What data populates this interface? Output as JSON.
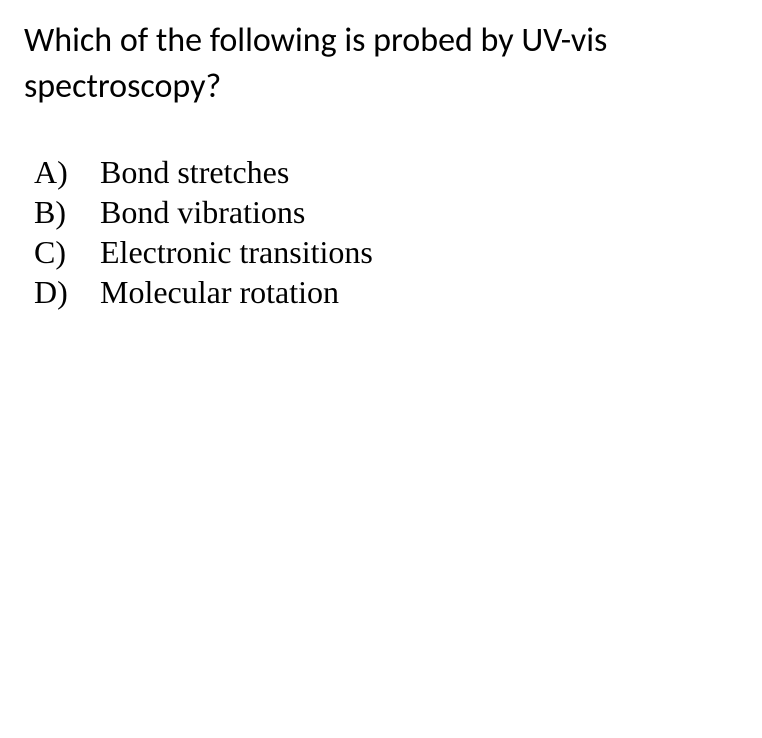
{
  "question": {
    "text": "Which of the following is probed by UV-vis spectroscopy?",
    "font_family": "Calibri, 'Segoe UI', Arial, sans-serif",
    "font_size": 34,
    "color": "#000000"
  },
  "options": {
    "font_family": "'Times New Roman', Times, serif",
    "font_size": 32,
    "color": "#000000",
    "items": [
      {
        "letter": "A)",
        "text": "Bond stretches"
      },
      {
        "letter": "B)",
        "text": "Bond vibrations"
      },
      {
        "letter": "C)",
        "text": "Electronic transitions"
      },
      {
        "letter": "D)",
        "text": "Molecular rotation"
      }
    ]
  },
  "background_color": "#ffffff"
}
